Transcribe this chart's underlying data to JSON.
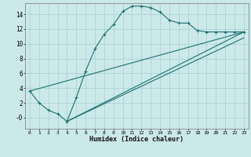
{
  "xlabel": "Humidex (Indice chaleur)",
  "bg_color": "#cce9ea",
  "grid_color": "#aad4d5",
  "line_color": "#1e7070",
  "xlim": [
    -0.5,
    23.5
  ],
  "ylim": [
    -1.5,
    15.5
  ],
  "xticks": [
    0,
    1,
    2,
    3,
    4,
    5,
    6,
    7,
    8,
    9,
    10,
    11,
    12,
    13,
    14,
    15,
    16,
    17,
    18,
    19,
    20,
    21,
    22,
    23
  ],
  "xtick_labels": [
    "0",
    "1",
    "2",
    "3",
    "4",
    "5",
    "6",
    "7",
    "8",
    "9",
    "10",
    "11",
    "12",
    "13",
    "14",
    "15",
    "16",
    "17",
    "18",
    "19",
    "20",
    "21",
    "22",
    "23"
  ],
  "yticks": [
    0,
    2,
    4,
    6,
    8,
    10,
    12,
    14
  ],
  "ytick_labels": [
    "-0",
    "2",
    "4",
    "6",
    "8",
    "10",
    "12",
    "14"
  ],
  "curve1_x": [
    0,
    1,
    2,
    3,
    4,
    5,
    6,
    7,
    8,
    9,
    10,
    11,
    12,
    13,
    14,
    15,
    16,
    17,
    18,
    19,
    20,
    21,
    22,
    23
  ],
  "curve1_y": [
    3.6,
    2.0,
    1.0,
    0.5,
    -0.5,
    2.7,
    6.3,
    9.3,
    11.3,
    12.6,
    14.4,
    15.1,
    15.1,
    14.9,
    14.3,
    13.2,
    12.8,
    12.8,
    11.8,
    11.6,
    11.6,
    11.6,
    11.6,
    11.6
  ],
  "line1_x": [
    0,
    23
  ],
  "line1_y": [
    3.6,
    11.6
  ],
  "line2_x": [
    4,
    23
  ],
  "line2_y": [
    -0.5,
    11.6
  ],
  "line3_x": [
    4,
    23
  ],
  "line3_y": [
    -0.5,
    10.8
  ]
}
